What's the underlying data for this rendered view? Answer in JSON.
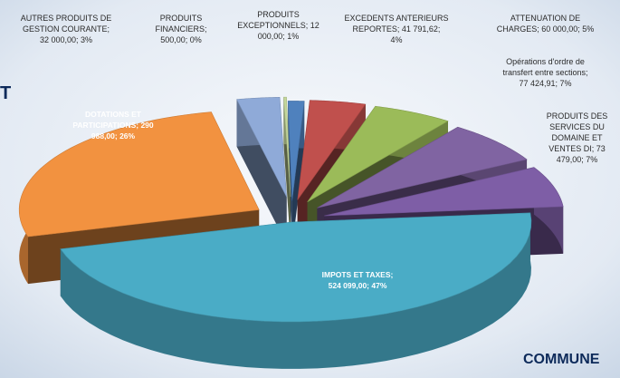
{
  "page": {
    "fragment_left": "T",
    "fragment_bottom": "COMMUNE"
  },
  "colors": {
    "background": "#e9eff6",
    "text": "#2b2b2b",
    "heading": "#0d2a5a"
  },
  "chart_data": {
    "type": "pie",
    "style": "3d-exploded",
    "title": "",
    "slices": [
      {
        "label": "AUTRES PRODUITS DE GESTION COURANTE; 32 000,00; 3%",
        "value": 32000.0,
        "percent": 3,
        "color": "#8faad8"
      },
      {
        "label": "PRODUITS FINANCIERS; 500,00; 0%",
        "value": 500.0,
        "percent": 0,
        "color": "#c4d79b"
      },
      {
        "label": "PRODUITS EXCEPTIONNELS; 12 000,00; 1%",
        "value": 12000.0,
        "percent": 1,
        "color": "#4f81bd"
      },
      {
        "label": "EXCEDENTS ANTERIEURS REPORTES; 41 791,62; 4%",
        "value": 41791.62,
        "percent": 4,
        "color": "#c0504d"
      },
      {
        "label": "ATTENUATION DE CHARGES; 60 000,00; 5%",
        "value": 60000.0,
        "percent": 5,
        "color": "#9bbb59"
      },
      {
        "label": "Opérations d'ordre de transfert entre sections; 77 424,91; 7%",
        "value": 77424.91,
        "percent": 7,
        "color": "#8064a2"
      },
      {
        "label": "PRODUITS DES SERVICES DU DOMAINE ET VENTES DI; 73 479,00; 7%",
        "value": 73479.0,
        "percent": 7,
        "color": "#7e5ea6"
      },
      {
        "label": "IMPOTS ET TAXES; 524 099,00; 47%",
        "value": 524099.0,
        "percent": 47,
        "color": "#4aacc6"
      },
      {
        "label": "DOTATIONS ET PARTICIPATIONS; 290 988,00; 26%",
        "value": 290988.0,
        "percent": 26,
        "color": "#f29240"
      }
    ],
    "display_labels": [
      "AUTRES PRODUITS DE\nGESTION COURANTE;\n32 000,00; 3%",
      "PRODUITS\nFINANCIERS;\n500,00; 0%",
      "PRODUITS\nEXCEPTIONNELS; 12\n000,00; 1%",
      "EXCEDENTS ANTERIEURS\nREPORTES; 41 791,62;\n4%",
      "ATTENUATION DE\nCHARGES; 60 000,00; 5%",
      "Opérations d'ordre de\ntransfert entre sections;\n77 424,91; 7%",
      "PRODUITS DES\nSERVICES DU\nDOMAINE ET\nVENTES DI; 73\n479,00; 7%",
      "IMPOTS ET TAXES;\n524 099,00; 47%",
      "DOTATIONS ET\nPARTICIPATIONS; 290\n988,00; 26%"
    ]
  }
}
